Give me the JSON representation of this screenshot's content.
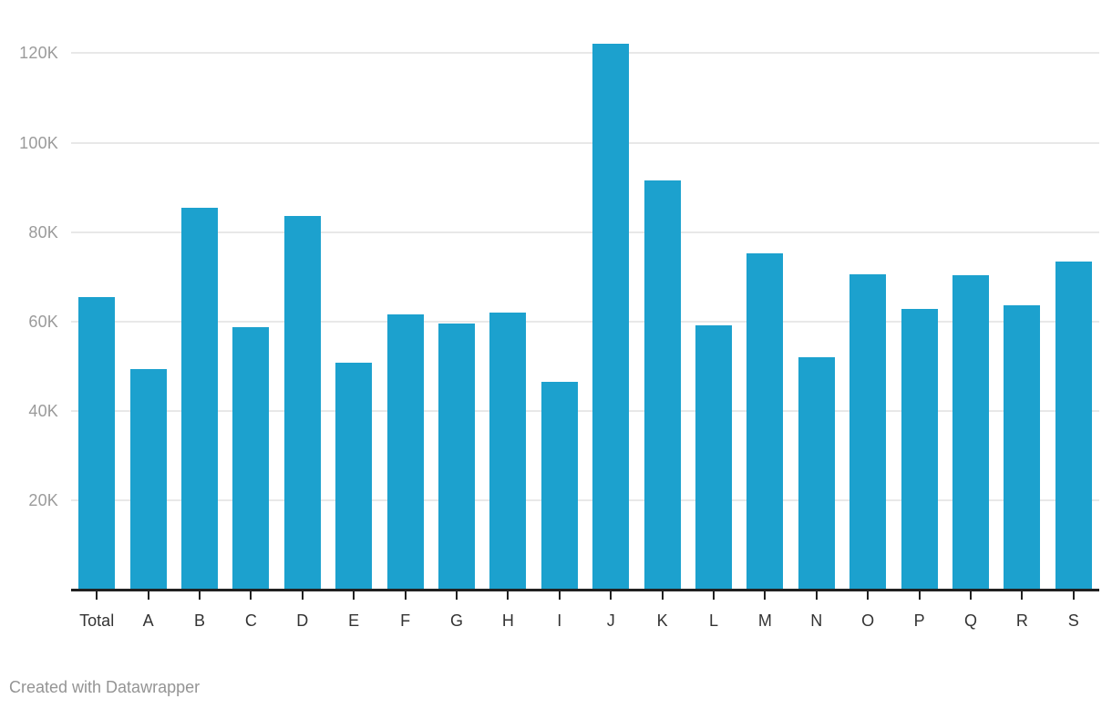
{
  "chart_data": {
    "type": "bar",
    "title": "",
    "xlabel": "",
    "ylabel": "",
    "categories": [
      "Total",
      "A",
      "B",
      "C",
      "D",
      "E",
      "F",
      "G",
      "H",
      "I",
      "J",
      "K",
      "L",
      "M",
      "N",
      "O",
      "P",
      "Q",
      "R",
      "S"
    ],
    "values": [
      65400,
      49400,
      85500,
      58800,
      83700,
      50900,
      61600,
      59500,
      62000,
      46600,
      122200,
      91600,
      59100,
      75300,
      52000,
      70500,
      62800,
      70400,
      63700,
      73500
    ],
    "ylim": [
      0,
      130000
    ],
    "yticks": {
      "values": [
        20000,
        40000,
        60000,
        80000,
        100000,
        120000
      ],
      "labels": [
        "20K",
        "40K",
        "60K",
        "80K",
        "100K",
        "120K"
      ]
    },
    "grid": "horizontal",
    "legend": "none"
  },
  "colors": {
    "bar": "#1CA1CE",
    "gridline": "#E8E8E8",
    "axis_line": "#212121",
    "y_tick_label": "#9B9B9B",
    "x_tick_label": "#333333",
    "footer_text": "#949494",
    "background": "#FFFFFF"
  },
  "footer": {
    "credit_text": "Created with Datawrapper"
  }
}
